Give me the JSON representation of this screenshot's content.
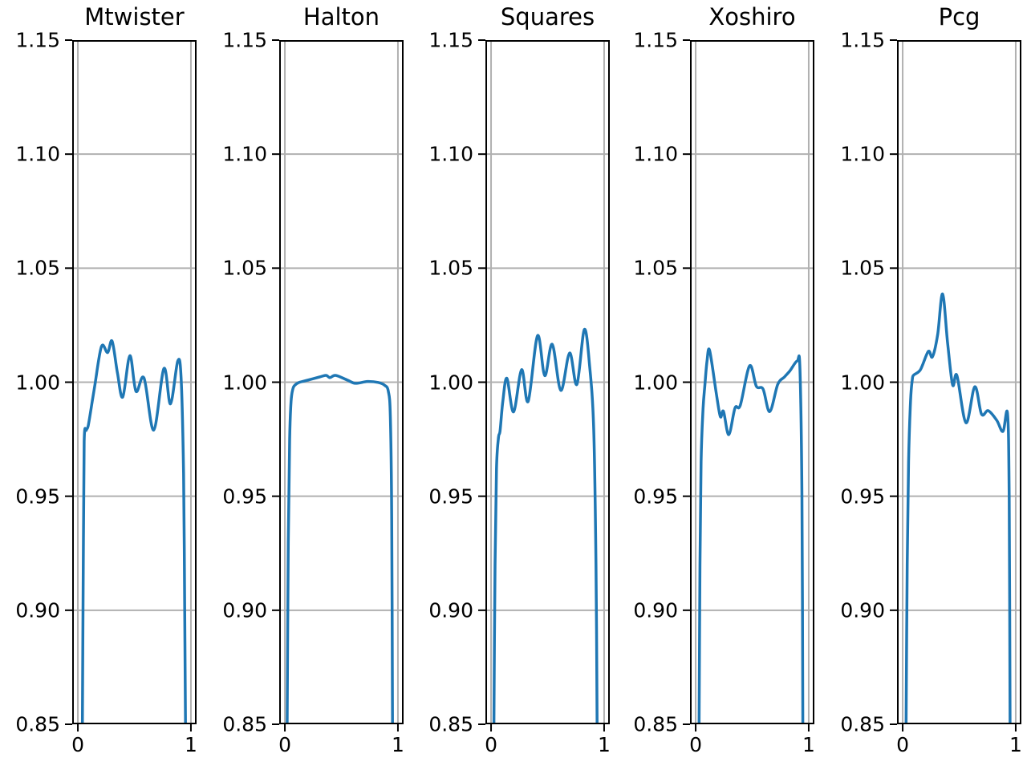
{
  "figure": {
    "background": "#ffffff"
  },
  "axes": {
    "xlim": [
      -0.05,
      1.05
    ],
    "ylim": [
      0.85,
      1.15
    ],
    "xticks": [
      0,
      1
    ],
    "xtick_labels": [
      "0",
      "1"
    ],
    "yticks": [
      1.15,
      1.1,
      1.05,
      1.0,
      0.95,
      0.9,
      0.85
    ],
    "ytick_labels": [
      "1.15",
      "1.10",
      "1.05",
      "1.00",
      "0.95",
      "0.90",
      "0.85"
    ],
    "grid": true,
    "legend": false,
    "grid_color": "#b0b0b0",
    "line_color": "#1f77b4",
    "spine_color": "#000000",
    "text_color": "#000000"
  },
  "chart_data": [
    {
      "type": "line",
      "title": "Mtwister",
      "points": [
        [
          0.04,
          0.85
        ],
        [
          0.048,
          0.92
        ],
        [
          0.056,
          0.974
        ],
        [
          0.075,
          0.979
        ],
        [
          0.092,
          0.981
        ],
        [
          0.127,
          0.9915
        ],
        [
          0.15,
          0.9986
        ],
        [
          0.209,
          1.0157
        ],
        [
          0.263,
          1.013
        ],
        [
          0.303,
          1.018
        ],
        [
          0.35,
          1.004
        ],
        [
          0.397,
          0.9935
        ],
        [
          0.46,
          1.0116
        ],
        [
          0.514,
          0.996
        ],
        [
          0.585,
          1.0018
        ],
        [
          0.671,
          0.979
        ],
        [
          0.761,
          1.006
        ],
        [
          0.819,
          0.9905
        ],
        [
          0.883,
          1.0092
        ],
        [
          0.913,
          1.002
        ],
        [
          0.935,
          0.96
        ],
        [
          0.945,
          0.9
        ],
        [
          0.952,
          0.85
        ]
      ]
    },
    {
      "type": "line",
      "title": "Halton",
      "points": [
        [
          0.02,
          0.85
        ],
        [
          0.03,
          0.93
        ],
        [
          0.042,
          0.975
        ],
        [
          0.055,
          0.9917
        ],
        [
          0.071,
          0.997
        ],
        [
          0.085,
          0.9985
        ],
        [
          0.12,
          0.9998
        ],
        [
          0.187,
          1.0007
        ],
        [
          0.307,
          1.0023
        ],
        [
          0.364,
          1.003
        ],
        [
          0.399,
          1.002
        ],
        [
          0.449,
          1.003
        ],
        [
          0.553,
          1.0009
        ],
        [
          0.624,
          0.9995
        ],
        [
          0.73,
          1.0003
        ],
        [
          0.825,
          0.9999
        ],
        [
          0.884,
          0.9986
        ],
        [
          0.915,
          0.996
        ],
        [
          0.933,
          0.985
        ],
        [
          0.945,
          0.94
        ],
        [
          0.952,
          0.85
        ]
      ]
    },
    {
      "type": "line",
      "title": "Squares",
      "points": [
        [
          0.025,
          0.85
        ],
        [
          0.035,
          0.92
        ],
        [
          0.048,
          0.962
        ],
        [
          0.065,
          0.9755
        ],
        [
          0.08,
          0.9788
        ],
        [
          0.104,
          0.9916
        ],
        [
          0.14,
          1.0017
        ],
        [
          0.199,
          0.987
        ],
        [
          0.27,
          1.0055
        ],
        [
          0.328,
          0.9916
        ],
        [
          0.411,
          1.0204
        ],
        [
          0.475,
          1.0029
        ],
        [
          0.541,
          1.0166
        ],
        [
          0.617,
          0.9964
        ],
        [
          0.695,
          1.0128
        ],
        [
          0.759,
          0.999
        ],
        [
          0.825,
          1.0231
        ],
        [
          0.872,
          1.007
        ],
        [
          0.908,
          0.979
        ],
        [
          0.928,
          0.92
        ],
        [
          0.938,
          0.85
        ]
      ]
    },
    {
      "type": "line",
      "title": "Xoshiro",
      "points": [
        [
          0.03,
          0.85
        ],
        [
          0.038,
          0.92
        ],
        [
          0.048,
          0.965
        ],
        [
          0.065,
          0.988
        ],
        [
          0.082,
          0.999
        ],
        [
          0.1,
          1.009
        ],
        [
          0.123,
          1.014
        ],
        [
          0.182,
          0.9952
        ],
        [
          0.218,
          0.9849
        ],
        [
          0.246,
          0.9872
        ],
        [
          0.293,
          0.977
        ],
        [
          0.348,
          0.9887
        ],
        [
          0.395,
          0.9899
        ],
        [
          0.477,
          1.0072
        ],
        [
          0.537,
          0.9982
        ],
        [
          0.596,
          0.997
        ],
        [
          0.655,
          0.9871
        ],
        [
          0.726,
          0.999
        ],
        [
          0.785,
          1.0023
        ],
        [
          0.832,
          1.0049
        ],
        [
          0.898,
          1.0093
        ],
        [
          0.922,
          1.006
        ],
        [
          0.94,
          0.95
        ],
        [
          0.948,
          0.85
        ]
      ]
    },
    {
      "type": "line",
      "title": "Pcg",
      "points": [
        [
          0.03,
          0.85
        ],
        [
          0.04,
          0.92
        ],
        [
          0.052,
          0.965
        ],
        [
          0.07,
          0.992
        ],
        [
          0.085,
          1.001
        ],
        [
          0.097,
          1.0031
        ],
        [
          0.157,
          1.0055
        ],
        [
          0.227,
          1.0135
        ],
        [
          0.263,
          1.0111
        ],
        [
          0.31,
          1.021
        ],
        [
          0.353,
          1.0387
        ],
        [
          0.398,
          1.017
        ],
        [
          0.442,
          0.9988
        ],
        [
          0.48,
          1.0029
        ],
        [
          0.56,
          0.9822
        ],
        [
          0.638,
          0.998
        ],
        [
          0.697,
          0.986
        ],
        [
          0.757,
          0.9875
        ],
        [
          0.832,
          0.9833
        ],
        [
          0.887,
          0.9784
        ],
        [
          0.927,
          0.9863
        ],
        [
          0.942,
          0.95
        ],
        [
          0.95,
          0.85
        ]
      ]
    }
  ]
}
